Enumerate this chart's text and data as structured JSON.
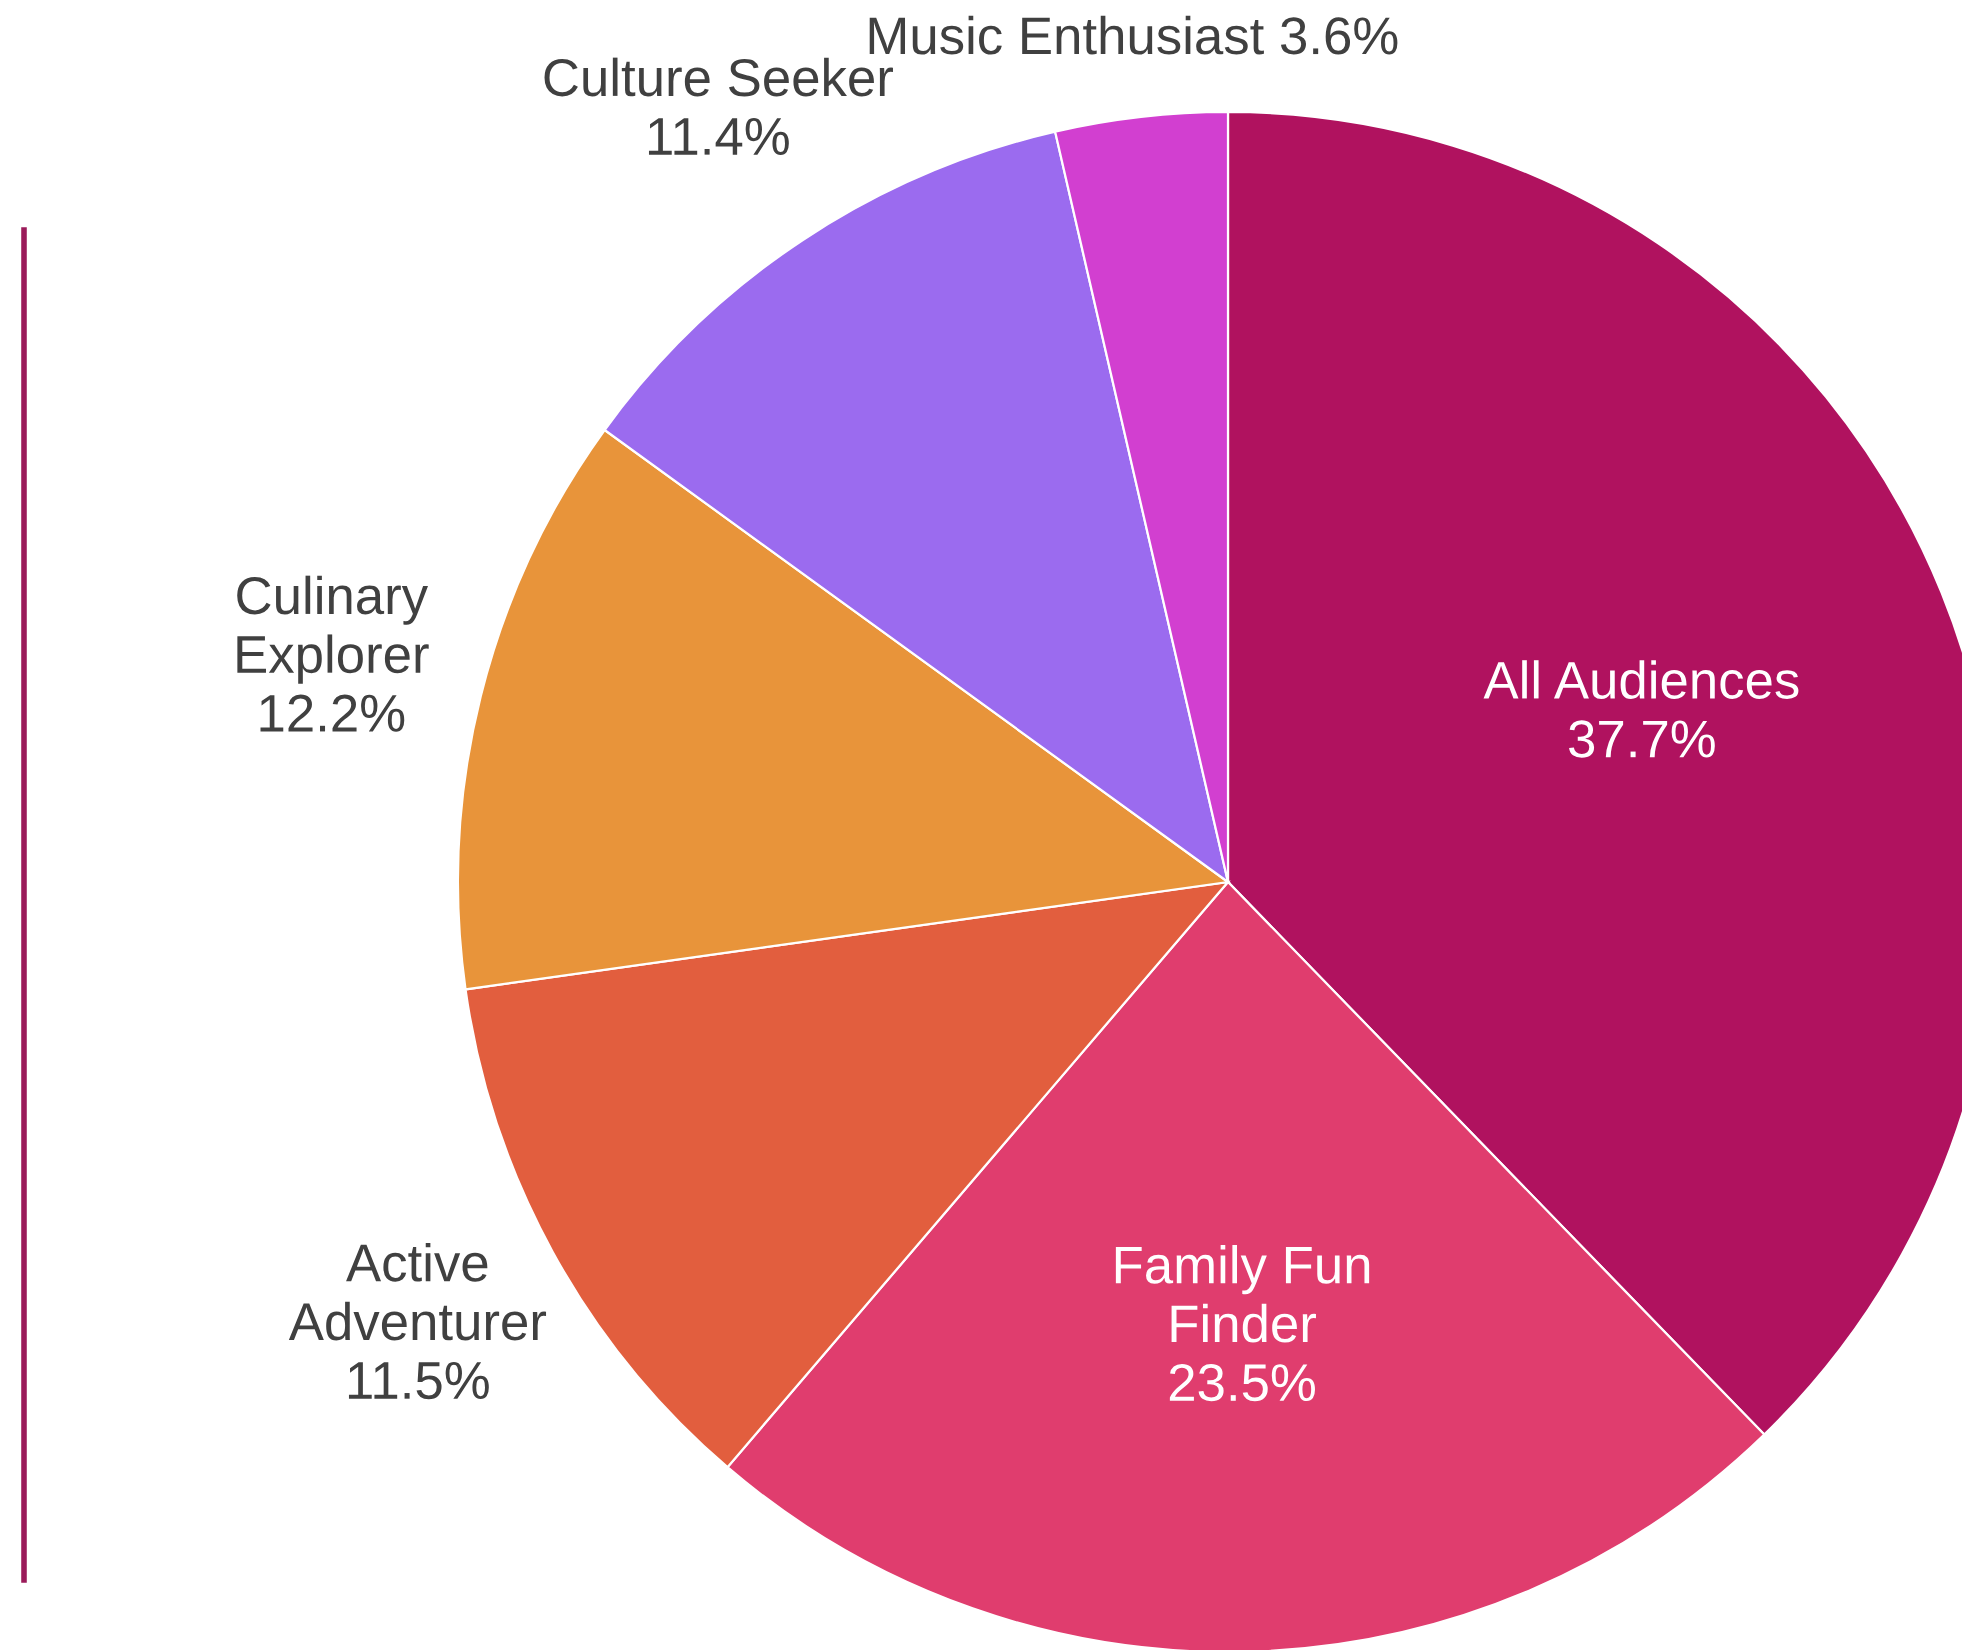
{
  "chart_data": {
    "type": "pie",
    "categories": [
      "All Audiences",
      "Family Fun\nFinder",
      "Active\nAdventurer",
      "Culinary\nExplorer",
      "Culture Seeker",
      "Music Enthusiast"
    ],
    "values": [
      37.7,
      23.5,
      11.5,
      12.2,
      11.4,
      3.6
    ],
    "colors": [
      "#b0125f",
      "#e03d6e",
      "#e25e3e",
      "#e8943a",
      "#9b6bef",
      "#d23fd0"
    ],
    "value_labels": [
      "37.7%",
      "23.5%",
      "11.5%",
      "12.2%",
      "11.4%",
      "3.6%"
    ]
  }
}
